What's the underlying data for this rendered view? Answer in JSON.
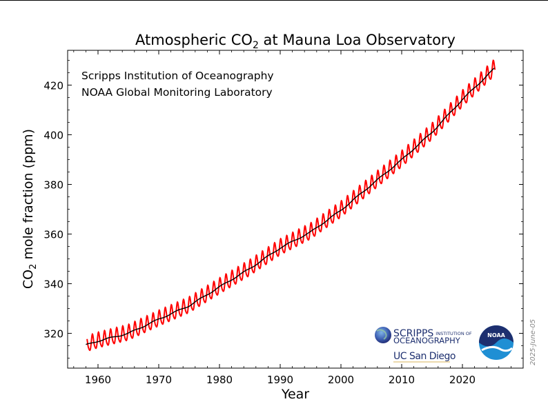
{
  "chart_data": {
    "type": "line",
    "title_main": "Atmospheric CO",
    "title_sub": "2",
    "title_rest": " at Mauna Loa Observatory",
    "ylabel_main": "CO",
    "ylabel_sub": "2",
    "ylabel_rest": " mole fraction (ppm)",
    "xlabel": "Year",
    "annotations": [
      "Scripps Institution of Oceanography",
      "NOAA Global Monitoring Laboratory"
    ],
    "date_stamp": "2025-June-05",
    "xlim": [
      1955,
      2030
    ],
    "ylim": [
      306,
      434
    ],
    "x_ticks": [
      1960,
      1970,
      1980,
      1990,
      2000,
      2010,
      2020
    ],
    "y_ticks": [
      320,
      340,
      360,
      380,
      400,
      420
    ],
    "grid": false,
    "series": [
      {
        "color": "#ff0000",
        "kind": "monthly",
        "seasonal_amplitude_ppm": [
          3.0,
          3.2
        ],
        "x_range": [
          1958.2,
          2025.4
        ]
      },
      {
        "color": "#000000",
        "kind": "trend",
        "x": [
          1958,
          1960,
          1965,
          1970,
          1975,
          1980,
          1985,
          1990,
          1995,
          2000,
          2005,
          2010,
          2015,
          2020,
          2025.4
        ],
        "y": [
          315.3,
          316.9,
          320.0,
          325.7,
          331.1,
          338.7,
          346.1,
          354.4,
          360.8,
          369.6,
          379.8,
          389.9,
          401.0,
          414.2,
          427.0
        ]
      }
    ]
  },
  "logos": {
    "scripps_line1": "SCRIPPS",
    "scripps_line1_small": "INSTITUTION OF",
    "scripps_line2": "OCEANOGRAPHY",
    "ucsd": "UC San Diego",
    "noaa": "NOAA"
  },
  "colors": {
    "monthly": "#ff0000",
    "trend": "#000000",
    "noaa_blue": "#1f8fd4",
    "noaa_navy": "#1d2f6f"
  }
}
